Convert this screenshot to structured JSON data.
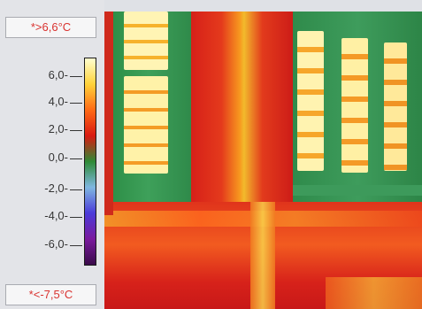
{
  "legend": {
    "max_label": "*>6,6°C",
    "min_label": "*<-7,5°C",
    "ticks": [
      "6,0-",
      "4,0-",
      "2,0-",
      "0,0-",
      "-2,0-",
      "-4,0-",
      "-6,0-"
    ],
    "palette": [
      "#ffffd0",
      "#ffd23a",
      "#ff6a16",
      "#d91a12",
      "#2e8a36",
      "#7fb7e0",
      "#4b3bd9",
      "#7a1a9e",
      "#3a0b4a"
    ]
  },
  "image": {
    "subject": "thermal infrared image of building facade with windows"
  }
}
